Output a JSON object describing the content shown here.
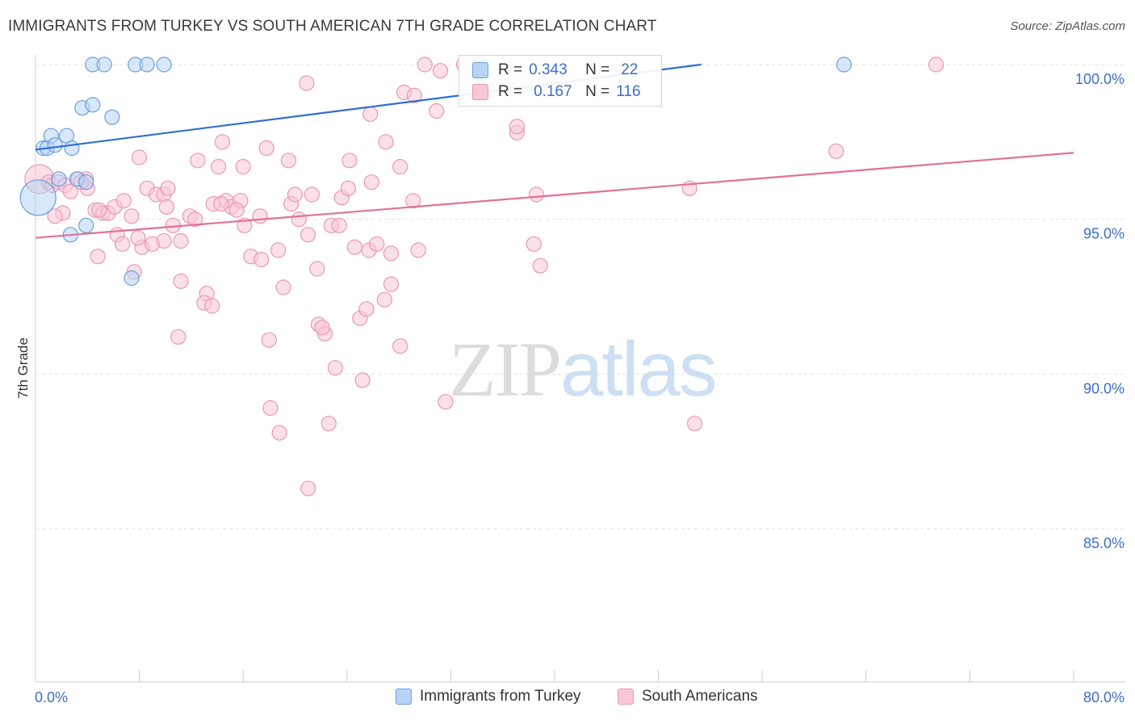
{
  "header": {
    "title": "IMMIGRANTS FROM TURKEY VS SOUTH AMERICAN 7TH GRADE CORRELATION CHART",
    "source": "Source: ZipAtlas.com"
  },
  "watermark": {
    "zip": "ZIP",
    "atlas": "atlas"
  },
  "stats": {
    "blue": {
      "r_label": "R =",
      "r_value": "0.343",
      "n_label": "N =",
      "n_value": "22"
    },
    "pink": {
      "r_label": "R =",
      "r_value": "0.167",
      "n_label": "N =",
      "n_value": "116"
    }
  },
  "legend": {
    "blue": "Immigrants from Turkey",
    "pink": "South Americans"
  },
  "colors": {
    "blue_fill": "#b8d4f5",
    "blue_stroke": "#6a9fdc",
    "blue_line": "#2f6fd1",
    "pink_fill": "#f9c6d5",
    "pink_stroke": "#e898b3",
    "pink_line": "#e2709a",
    "axis_label": "#3d6fc7",
    "grid": "#e2e2e2"
  },
  "chart_data": {
    "type": "scatter",
    "title": "IMMIGRANTS FROM TURKEY VS SOUTH AMERICAN 7TH GRADE CORRELATION CHART",
    "xlabel": "",
    "ylabel": "7th Grade",
    "xlim": [
      0,
      80
    ],
    "ylim": [
      80.5,
      100.8
    ],
    "x_tick_labels": [
      "0.0%",
      "80.0%"
    ],
    "y_ticks": [
      85,
      90,
      95,
      100
    ],
    "y_tick_labels": [
      "85.0%",
      "90.0%",
      "95.0%",
      "100.0%"
    ],
    "grid": true,
    "legend_position": "bottom",
    "series": [
      {
        "name": "Immigrants from Turkey",
        "color": "#6a9fdc",
        "trend": {
          "x": [
            0.0,
            51.3
          ],
          "y": [
            97.25,
            100.0
          ]
        },
        "points": [
          [
            0.2,
            95.7,
            22
          ],
          [
            0.6,
            97.3,
            9
          ],
          [
            0.9,
            97.3,
            9
          ],
          [
            1.2,
            97.7,
            9
          ],
          [
            1.5,
            97.4,
            9
          ],
          [
            1.8,
            96.3,
            9
          ],
          [
            2.4,
            97.7,
            9
          ],
          [
            2.8,
            97.3,
            9
          ],
          [
            3.2,
            96.3,
            9
          ],
          [
            3.6,
            98.6,
            9
          ],
          [
            3.9,
            96.2,
            9
          ],
          [
            4.4,
            98.7,
            9
          ],
          [
            2.7,
            94.5,
            9
          ],
          [
            3.9,
            94.8,
            9
          ],
          [
            5.9,
            98.3,
            9
          ],
          [
            4.4,
            100.0,
            9
          ],
          [
            5.3,
            100.0,
            9
          ],
          [
            7.7,
            100.0,
            9
          ],
          [
            8.6,
            100.0,
            9
          ],
          [
            9.9,
            100.0,
            9
          ],
          [
            7.4,
            93.1,
            9
          ],
          [
            62.3,
            100.0,
            9
          ]
        ]
      },
      {
        "name": "South Americans",
        "color": "#e898b3",
        "trend": {
          "x": [
            0.0,
            80.0
          ],
          "y": [
            94.4,
            97.15
          ]
        },
        "points": [
          [
            0.3,
            96.3,
            18
          ],
          [
            1.0,
            96.2,
            9
          ],
          [
            1.3,
            96.1,
            9
          ],
          [
            1.8,
            96.2,
            9
          ],
          [
            2.3,
            96.1,
            9
          ],
          [
            2.7,
            95.9,
            9
          ],
          [
            3.3,
            96.3,
            9
          ],
          [
            3.9,
            96.3,
            9
          ],
          [
            4.0,
            96.0,
            9
          ],
          [
            2.1,
            95.2,
            9
          ],
          [
            1.5,
            95.1,
            9
          ],
          [
            4.6,
            95.3,
            9
          ],
          [
            5.2,
            95.2,
            9
          ],
          [
            5.6,
            95.2,
            9
          ],
          [
            6.1,
            95.4,
            9
          ],
          [
            6.8,
            95.6,
            9
          ],
          [
            7.4,
            95.1,
            9
          ],
          [
            6.3,
            94.5,
            9
          ],
          [
            6.7,
            94.2,
            9
          ],
          [
            8.2,
            94.1,
            9
          ],
          [
            9.0,
            94.2,
            9
          ],
          [
            9.9,
            94.3,
            9
          ],
          [
            10.6,
            94.8,
            9
          ],
          [
            11.2,
            94.3,
            9
          ],
          [
            11.9,
            95.1,
            9
          ],
          [
            12.3,
            95.0,
            9
          ],
          [
            13.7,
            95.5,
            9
          ],
          [
            14.7,
            95.6,
            9
          ],
          [
            15.1,
            95.4,
            9
          ],
          [
            15.8,
            95.6,
            9
          ],
          [
            16.1,
            94.8,
            9
          ],
          [
            16.6,
            93.8,
            9
          ],
          [
            17.3,
            95.1,
            9
          ],
          [
            17.4,
            93.7,
            9
          ],
          [
            18.7,
            94.0,
            9
          ],
          [
            19.7,
            95.5,
            9
          ],
          [
            20.3,
            95.0,
            9
          ],
          [
            21.0,
            94.5,
            9
          ],
          [
            21.3,
            95.8,
            9
          ],
          [
            21.7,
            93.4,
            9
          ],
          [
            19.1,
            92.8,
            9
          ],
          [
            22.8,
            94.8,
            9
          ],
          [
            23.6,
            95.7,
            9
          ],
          [
            24.6,
            94.1,
            9
          ],
          [
            25.7,
            94.0,
            9
          ],
          [
            26.3,
            94.2,
            9
          ],
          [
            27.4,
            92.9,
            9
          ],
          [
            26.9,
            92.4,
            9
          ],
          [
            27.4,
            93.9,
            9
          ],
          [
            28.1,
            96.7,
            9
          ],
          [
            29.1,
            95.6,
            9
          ],
          [
            28.4,
            99.1,
            9
          ],
          [
            29.2,
            99.0,
            9
          ],
          [
            30.9,
            98.5,
            9
          ],
          [
            31.2,
            99.8,
            9
          ],
          [
            30.0,
            100.0,
            9
          ],
          [
            33.0,
            100.0,
            9
          ],
          [
            34.4,
            99.0,
            9
          ],
          [
            35.8,
            99.4,
            9
          ],
          [
            37.1,
            97.8,
            9
          ],
          [
            37.1,
            98.0,
            9
          ],
          [
            37.2,
            99.5,
            9
          ],
          [
            8.0,
            97.0,
            9
          ],
          [
            8.6,
            96.0,
            9
          ],
          [
            9.3,
            95.8,
            9
          ],
          [
            9.9,
            95.8,
            9
          ],
          [
            10.1,
            95.4,
            9
          ],
          [
            12.5,
            96.9,
            9
          ],
          [
            14.1,
            96.7,
            9
          ],
          [
            14.4,
            97.5,
            9
          ],
          [
            16.0,
            96.7,
            9
          ],
          [
            17.8,
            97.3,
            9
          ],
          [
            19.5,
            96.9,
            9
          ],
          [
            20.9,
            99.4,
            9
          ],
          [
            24.1,
            96.0,
            9
          ],
          [
            24.2,
            96.9,
            9
          ],
          [
            25.9,
            96.2,
            9
          ],
          [
            25.8,
            98.4,
            9
          ],
          [
            27.0,
            97.5,
            9
          ],
          [
            4.8,
            93.8,
            9
          ],
          [
            7.6,
            93.3,
            9
          ],
          [
            11.2,
            93.0,
            9
          ],
          [
            13.2,
            92.6,
            9
          ],
          [
            13.0,
            92.3,
            9
          ],
          [
            13.6,
            92.2,
            9
          ],
          [
            11.0,
            91.2,
            9
          ],
          [
            18.0,
            91.1,
            9
          ],
          [
            21.8,
            91.6,
            9
          ],
          [
            22.3,
            91.3,
            9
          ],
          [
            22.1,
            91.5,
            9
          ],
          [
            25.0,
            91.8,
            9
          ],
          [
            25.5,
            92.1,
            9
          ],
          [
            28.1,
            90.9,
            9
          ],
          [
            23.1,
            90.2,
            9
          ],
          [
            25.2,
            89.8,
            9
          ],
          [
            18.1,
            88.9,
            9
          ],
          [
            18.8,
            88.1,
            9
          ],
          [
            22.6,
            88.4,
            9
          ],
          [
            31.6,
            89.1,
            9
          ],
          [
            21.0,
            86.3,
            9
          ],
          [
            38.6,
            95.8,
            9
          ],
          [
            38.4,
            94.2,
            9
          ],
          [
            38.9,
            93.5,
            9
          ],
          [
            50.4,
            96.0,
            9
          ],
          [
            50.8,
            88.4,
            9
          ],
          [
            61.7,
            97.2,
            9
          ],
          [
            69.4,
            100.0,
            9
          ],
          [
            3.5,
            96.2,
            9
          ],
          [
            4.9,
            95.3,
            9
          ],
          [
            7.9,
            94.4,
            9
          ],
          [
            10.2,
            96.0,
            9
          ],
          [
            14.3,
            95.5,
            9
          ],
          [
            15.5,
            95.3,
            9
          ],
          [
            20.0,
            95.8,
            9
          ],
          [
            23.4,
            94.8,
            9
          ],
          [
            29.5,
            94.0,
            9
          ]
        ]
      }
    ]
  }
}
